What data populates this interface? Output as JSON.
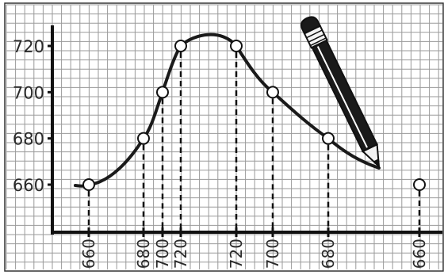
{
  "chart_data": {
    "type": "line",
    "title": "",
    "xlabel": "",
    "ylabel": "",
    "ylim": [
      650,
      725
    ],
    "grid": true,
    "y_ticks": [
      "660",
      "680",
      "700",
      "720"
    ],
    "points": [
      {
        "label": "660",
        "value": 660
      },
      {
        "label": "680",
        "value": 680
      },
      {
        "label": "700",
        "value": 700
      },
      {
        "label": "720",
        "value": 720
      },
      {
        "label": "720",
        "value": 720
      },
      {
        "label": "700",
        "value": 700
      },
      {
        "label": "680",
        "value": 680
      },
      {
        "label": "660",
        "value": 660
      }
    ],
    "curve_includes_last_point": false,
    "decoration": "pencil-icon",
    "colors": {
      "line": "#1a1a1a",
      "grid": "#9a9a9a",
      "background": "#ffffff"
    }
  }
}
